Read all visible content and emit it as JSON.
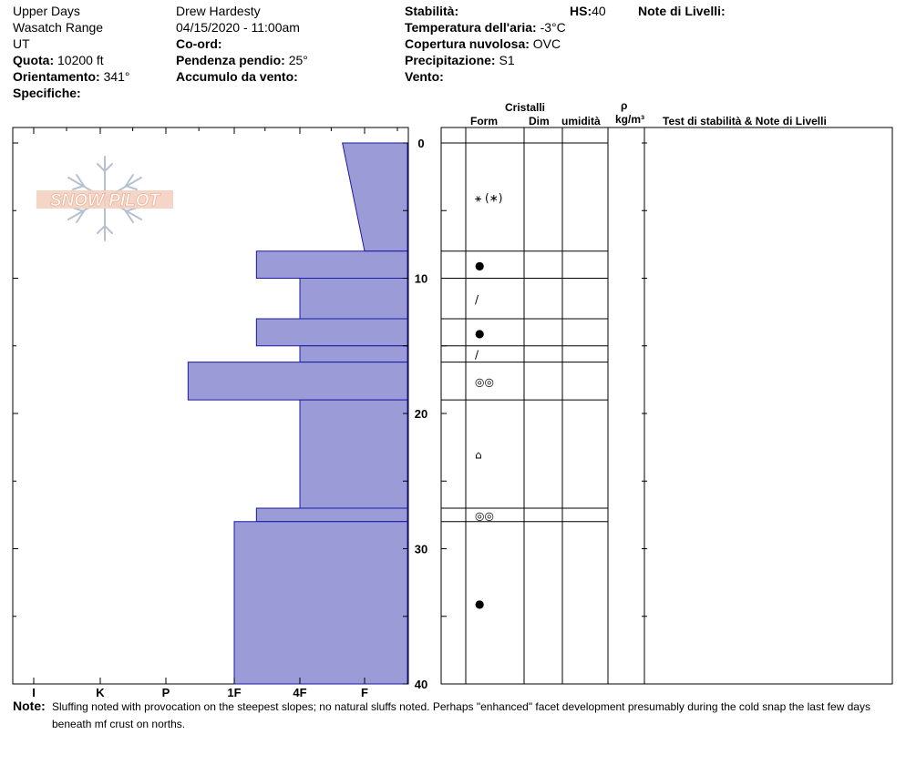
{
  "header": {
    "location": "Upper Days",
    "range": "Wasatch Range",
    "state": "UT",
    "elevation_label": "Quota:",
    "elevation_value": "10200 ft",
    "aspect_label": "Orientamento:",
    "aspect_value": "341°",
    "specifics_label": "Specifiche:",
    "observer": "Drew Hardesty",
    "datetime": "04/15/2020 - 11:00am",
    "coord_label": "Co-ord:",
    "slope_label": "Pendenza pendio:",
    "slope_value": "25°",
    "wind_loading_label": "Accumulo da vento:",
    "stability_label": "Stabilità:",
    "hs_label": "HS:",
    "hs_value": "40",
    "air_temp_label": "Temperatura dell'aria:",
    "air_temp_value": "-3°C",
    "sky_label": "Copertura nuvolosa:",
    "sky_value": "OVC",
    "precip_label": "Precipitazione:",
    "precip_value": "S1",
    "wind_label": "Vento:",
    "layer_notes_label": "Note di Livelli:"
  },
  "columns": {
    "crystals": "Cristalli",
    "form": "Form",
    "size": "Dim",
    "moisture": "umidità",
    "rho": "ρ",
    "density_unit": "kg/m³",
    "stability_notes": "Test di stabilità & Note di Livelli"
  },
  "logo": {
    "text": "SNOW PILOT"
  },
  "note": {
    "label": "Note:",
    "text": "Sluffing noted with provocation on the steepest slopes; no natural sluffs noted.  Perhaps \"enhanced\" facet development presumably during the cold snap the last few days beneath mf crust on norths."
  },
  "colors": {
    "hardness_fill": "#9b9bd8",
    "hardness_stroke": "#1a1aa6"
  },
  "chart_data": {
    "type": "bar",
    "orientation": "horizontal",
    "depth_axis": {
      "range": [
        0,
        40
      ],
      "ticks": [
        0,
        10,
        20,
        30,
        40
      ]
    },
    "hardness_axis": {
      "categories": [
        "I",
        "K",
        "P",
        "1F",
        "4F",
        "F"
      ]
    },
    "layers": [
      {
        "top": 0,
        "bottom": 8,
        "hardness_top": "F-",
        "hardness_bottom": "F",
        "form_symbol": "⚹ (∗)"
      },
      {
        "top": 8,
        "bottom": 10,
        "hardness": "1F+",
        "form_symbol": "●"
      },
      {
        "top": 10,
        "bottom": 13,
        "hardness": "4F",
        "form_symbol": "/"
      },
      {
        "top": 13,
        "bottom": 15,
        "hardness": "1F+",
        "form_symbol": "●"
      },
      {
        "top": 15,
        "bottom": 16.2,
        "hardness": "4F",
        "form_symbol": "/"
      },
      {
        "top": 16.2,
        "bottom": 19,
        "hardness": "P+",
        "form_symbol": "◎◎"
      },
      {
        "top": 19,
        "bottom": 27,
        "hardness": "4F",
        "form_symbol": "⌂"
      },
      {
        "top": 27,
        "bottom": 28,
        "hardness": "1F+",
        "form_symbol": "◎◎"
      },
      {
        "top": 28,
        "bottom": 40,
        "hardness": "1F",
        "form_symbol": "●"
      }
    ]
  }
}
